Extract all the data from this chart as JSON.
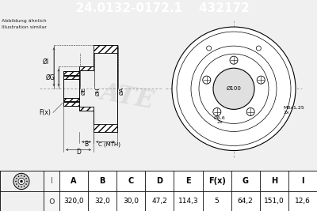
{
  "part_number": "24.0132-0172.1",
  "article_number": "432172",
  "header_bg": "#0000cc",
  "header_text_color": "#ffffff",
  "table_headers": [
    "A",
    "B",
    "C",
    "D",
    "E",
    "F(x)",
    "G",
    "H",
    "I"
  ],
  "table_values": [
    "320,0",
    "32,0",
    "30,0",
    "47,2",
    "114,3",
    "5",
    "64,2",
    "151,0",
    "12,6"
  ],
  "note_line1": "Abbildung ähnlich",
  "note_line2": "Illustration similar",
  "bg_color": "#f0f0f0",
  "line_color": "#000000",
  "dim_line_color": "#444444",
  "center_line_color": "#888888"
}
